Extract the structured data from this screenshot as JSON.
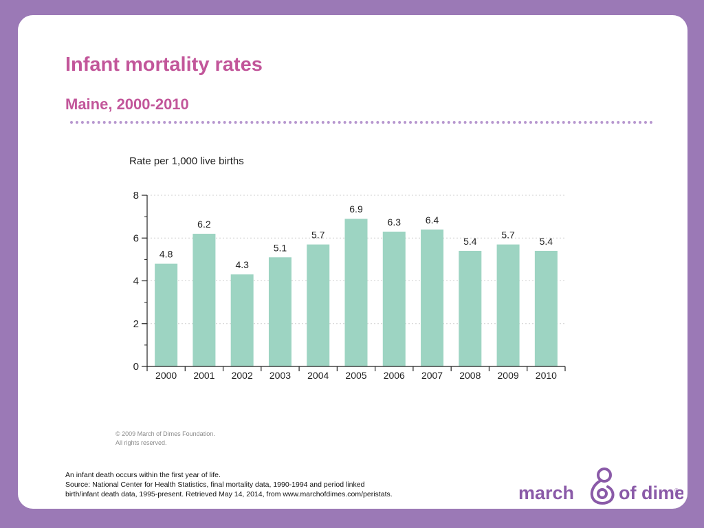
{
  "slide": {
    "title": "Infant mortality rates",
    "subtitle": "Maine, 2000-2010",
    "copyright_line1": "© 2009 March of Dimes Foundation.",
    "copyright_line2": "All rights reserved.",
    "note_line1": "An infant death occurs within the first year of life.",
    "note_line2": "Source: National Center for Health Statistics, final mortality data, 1990-1994  and period linked",
    "note_line3": "birth/infant death data, 1995-present. Retrieved May 14, 2014, from www.marchofdimes.com/peristats.",
    "logo_text_left": "march",
    "logo_text_right": "of dimes",
    "logo_mark": "®"
  },
  "colors": {
    "background": "#9b79b6",
    "title": "#c2569a",
    "bar": "#9dd4c2",
    "logo": "#8a5aa8"
  },
  "chart_data": {
    "type": "bar",
    "title": "",
    "ylabel": "Rate per 1,000 live births",
    "xlabel": "",
    "categories": [
      "2000",
      "2001",
      "2002",
      "2003",
      "2004",
      "2005",
      "2006",
      "2007",
      "2008",
      "2009",
      "2010"
    ],
    "values": [
      4.8,
      6.2,
      4.3,
      5.1,
      5.7,
      6.9,
      6.3,
      6.4,
      5.4,
      5.7,
      5.4
    ],
    "ylim": [
      0,
      8
    ],
    "yticks": [
      0,
      2,
      4,
      6,
      8
    ],
    "grid": true,
    "data_labels": true,
    "legend": "none"
  }
}
